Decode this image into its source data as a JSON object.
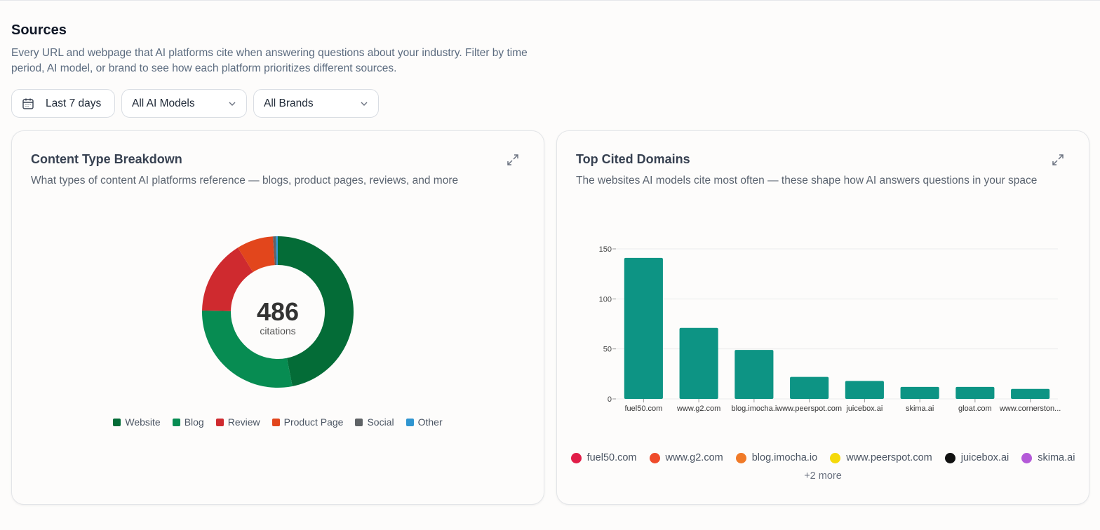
{
  "page": {
    "title": "Sources",
    "description": "Every URL and webpage that AI platforms cite when answering questions about your industry. Filter by time period, AI model, or brand to see how each platform prioritizes different sources."
  },
  "filters": {
    "date": "Last 7 days",
    "model": "All AI Models",
    "brand": "All Brands"
  },
  "content_card": {
    "title": "Content Type Breakdown",
    "subtitle": "What types of content AI platforms reference — blogs, product pages, reviews, and more",
    "total": "486",
    "total_label": "citations"
  },
  "domains_card": {
    "title": "Top Cited Domains",
    "subtitle": "The websites AI models cite most often — these shape how AI answers questions in your space",
    "legend": [
      {
        "label": "fuel50.com",
        "color": "#e11d48"
      },
      {
        "label": "www.g2.com",
        "color": "#ef4b2b"
      },
      {
        "label": "blog.imocha.io",
        "color": "#f07a28"
      },
      {
        "label": "www.peerspot.com",
        "color": "#f5d90a"
      },
      {
        "label": "juicebox.ai",
        "color": "#111111"
      },
      {
        "label": "skima.ai",
        "color": "#b45ad8"
      }
    ],
    "more": "+2 more"
  },
  "chart_data": [
    {
      "type": "pie",
      "categories": [
        "Website",
        "Blog",
        "Review",
        "Product Page",
        "Social",
        "Other"
      ],
      "values": [
        228,
        138,
        77,
        38,
        3,
        2
      ],
      "colors": [
        "#046c37",
        "#078c52",
        "#cf2a2f",
        "#e2461c",
        "#5f6366",
        "#2f95d0"
      ],
      "legend_position": "bottom"
    },
    {
      "type": "bar",
      "categories": [
        "fuel50.com",
        "www.g2.com",
        "blog.imocha.io",
        "www.peerspot.com",
        "juicebox.ai",
        "skima.ai",
        "gloat.com",
        "www.cornerston..."
      ],
      "values": [
        141,
        71,
        49,
        22,
        18,
        12,
        12,
        10
      ],
      "yticks": [
        0,
        50,
        100,
        150
      ],
      "ylim": [
        0,
        150
      ],
      "grid": true,
      "color": "#0d9484"
    }
  ]
}
